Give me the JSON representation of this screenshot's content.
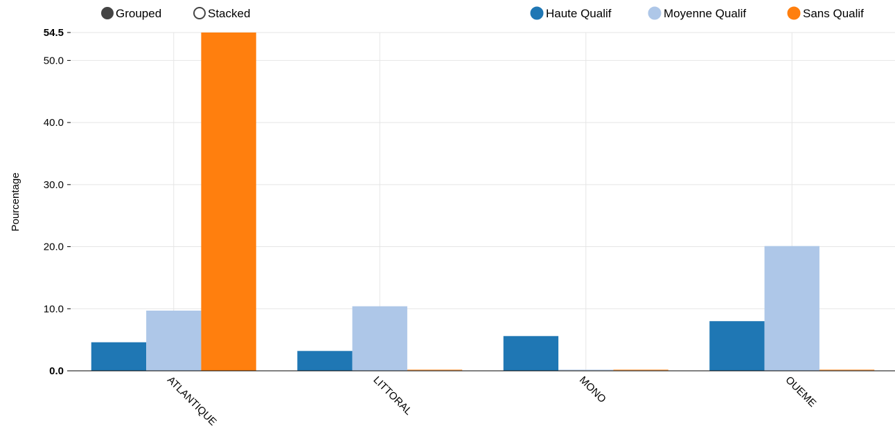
{
  "controls": {
    "options": [
      {
        "label": "Grouped",
        "selected": true
      },
      {
        "label": "Stacked",
        "selected": false
      }
    ]
  },
  "chart_data": {
    "type": "bar",
    "mode": "grouped",
    "categories": [
      "ATLANTIQUE",
      "LITTORAL",
      "MONO",
      "OUEME"
    ],
    "series": [
      {
        "name": "Haute Qualif",
        "color": "#1f77b4",
        "values": [
          4.6,
          3.2,
          5.6,
          8.0
        ]
      },
      {
        "name": "Moyenne Qualif",
        "color": "#aec7e8",
        "values": [
          9.7,
          10.4,
          0,
          20.1
        ]
      },
      {
        "name": "Sans Qualif",
        "color": "#ff7f0e",
        "values": [
          54.5,
          0,
          0,
          0
        ]
      }
    ],
    "ylabel": "Pourcentage",
    "xlabel": "",
    "ylim": [
      0,
      54.5
    ],
    "yticks": [
      "0.0",
      "10.0",
      "20.0",
      "30.0",
      "40.0",
      "50.0",
      "54.5"
    ],
    "grid": true,
    "legend_position": "top-right"
  }
}
